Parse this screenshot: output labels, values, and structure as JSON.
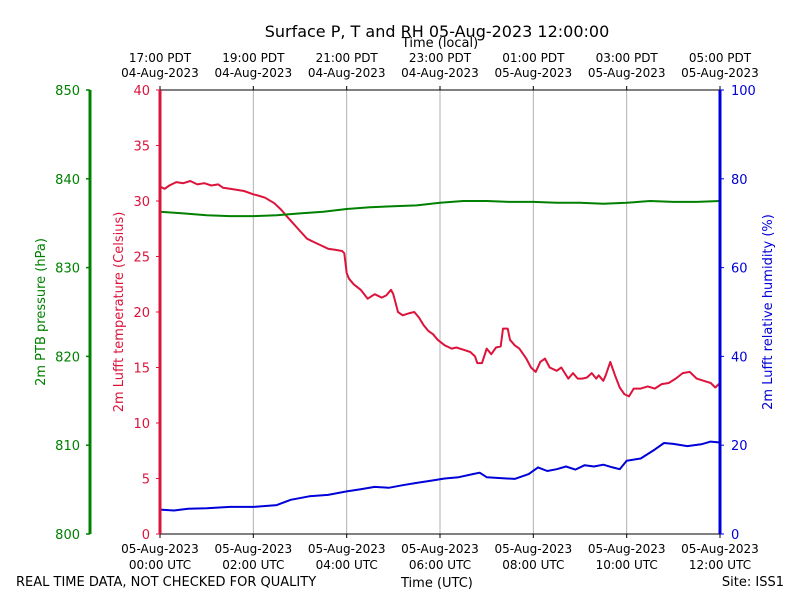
{
  "colors": {
    "temperature": "#dc143c",
    "humidity": "#0000d8",
    "pressure": "#008000",
    "grid": "#b0b0b0",
    "text": "#000000"
  },
  "footer": {
    "left": "REAL TIME DATA, NOT CHECKED FOR QUALITY",
    "center": "Time (UTC)",
    "right": "Site: ISS1"
  },
  "chart_data": {
    "type": "line",
    "title": "Surface P, T and RH 05-Aug-2023 12:00:00",
    "top_axis_label": "Time (local)",
    "xlabel": "Time (UTC)",
    "x_range_hours": [
      0,
      12
    ],
    "bottom_ticks": [
      {
        "h": 0,
        "date": "05-Aug-2023",
        "time": "00:00 UTC"
      },
      {
        "h": 2,
        "date": "05-Aug-2023",
        "time": "02:00 UTC"
      },
      {
        "h": 4,
        "date": "05-Aug-2023",
        "time": "04:00 UTC"
      },
      {
        "h": 6,
        "date": "05-Aug-2023",
        "time": "06:00 UTC"
      },
      {
        "h": 8,
        "date": "05-Aug-2023",
        "time": "08:00 UTC"
      },
      {
        "h": 10,
        "date": "05-Aug-2023",
        "time": "10:00 UTC"
      },
      {
        "h": 12,
        "date": "05-Aug-2023",
        "time": "12:00 UTC"
      }
    ],
    "top_ticks": [
      {
        "h": 0,
        "time": "17:00 PDT",
        "date": "04-Aug-2023"
      },
      {
        "h": 2,
        "time": "19:00 PDT",
        "date": "04-Aug-2023"
      },
      {
        "h": 4,
        "time": "21:00 PDT",
        "date": "04-Aug-2023"
      },
      {
        "h": 6,
        "time": "23:00 PDT",
        "date": "04-Aug-2023"
      },
      {
        "h": 8,
        "time": "01:00 PDT",
        "date": "05-Aug-2023"
      },
      {
        "h": 10,
        "time": "03:00 PDT",
        "date": "05-Aug-2023"
      },
      {
        "h": 12,
        "time": "05:00 PDT",
        "date": "05-Aug-2023"
      }
    ],
    "axes": {
      "pressure": {
        "label": "2m PTB pressure (hPa)",
        "range": [
          800,
          850
        ],
        "ticks": [
          800,
          810,
          820,
          830,
          840,
          850
        ]
      },
      "temperature": {
        "label": "2m Lufft temperature (Celsius)",
        "range": [
          0,
          40
        ],
        "ticks": [
          0,
          5,
          10,
          15,
          20,
          25,
          30,
          35,
          40
        ]
      },
      "humidity": {
        "label": "2m Lufft relative humidity (%)",
        "range": [
          0,
          100
        ],
        "ticks": [
          0,
          20,
          40,
          60,
          80,
          100
        ]
      }
    },
    "series": [
      {
        "name": "temperature",
        "axis": "temperature",
        "x": [
          0,
          0.1,
          0.2,
          0.35,
          0.5,
          0.65,
          0.8,
          0.95,
          1.1,
          1.25,
          1.35,
          1.5,
          1.65,
          1.8,
          2.0,
          2.1,
          2.25,
          2.45,
          2.6,
          2.7,
          2.85,
          3.0,
          3.15,
          3.3,
          3.45,
          3.6,
          3.75,
          3.9,
          3.95,
          4.0,
          4.05,
          4.15,
          4.3,
          4.45,
          4.6,
          4.75,
          4.85,
          4.95,
          5.0,
          5.1,
          5.2,
          5.35,
          5.45,
          5.55,
          5.65,
          5.75,
          5.85,
          5.95,
          6.1,
          6.25,
          6.35,
          6.5,
          6.65,
          6.75,
          6.8,
          6.9,
          7.0,
          7.1,
          7.2,
          7.3,
          7.35,
          7.45,
          7.5,
          7.6,
          7.7,
          7.85,
          7.95,
          8.05,
          8.15,
          8.25,
          8.35,
          8.5,
          8.6,
          8.75,
          8.85,
          8.95,
          9.05,
          9.15,
          9.25,
          9.35,
          9.4,
          9.5,
          9.55,
          9.65,
          9.75,
          9.85,
          9.95,
          10.05,
          10.15,
          10.3,
          10.45,
          10.6,
          10.75,
          10.9,
          11.05,
          11.2,
          11.35,
          11.5,
          11.65,
          11.8,
          11.9,
          12.0
        ],
        "values": [
          31.3,
          31.1,
          31.4,
          31.7,
          31.6,
          31.8,
          31.5,
          31.6,
          31.4,
          31.5,
          31.2,
          31.1,
          31.0,
          30.9,
          30.6,
          30.5,
          30.3,
          29.8,
          29.2,
          28.7,
          28.0,
          27.3,
          26.6,
          26.3,
          26.0,
          25.7,
          25.6,
          25.5,
          25.3,
          23.5,
          23.0,
          22.5,
          22.0,
          21.2,
          21.6,
          21.3,
          21.5,
          22.0,
          21.6,
          20.0,
          19.7,
          19.9,
          20.0,
          19.5,
          18.8,
          18.3,
          18.0,
          17.5,
          17.0,
          16.7,
          16.8,
          16.6,
          16.4,
          16.0,
          15.4,
          15.4,
          16.7,
          16.2,
          16.8,
          16.9,
          18.5,
          18.5,
          17.5,
          17.0,
          16.7,
          15.8,
          15.0,
          14.6,
          15.5,
          15.8,
          15.0,
          14.7,
          15.0,
          14.0,
          14.5,
          14.0,
          14.0,
          14.1,
          14.5,
          14.0,
          14.3,
          13.8,
          14.3,
          15.5,
          14.3,
          13.2,
          12.6,
          12.4,
          13.1,
          13.1,
          13.3,
          13.1,
          13.5,
          13.6,
          14.0,
          14.5,
          14.6,
          14.0,
          13.8,
          13.6,
          13.2,
          13.6
        ]
      },
      {
        "name": "pressure",
        "axis": "pressure",
        "x": [
          0,
          0.5,
          1.0,
          1.5,
          2.0,
          2.5,
          3.0,
          3.5,
          4.0,
          4.5,
          5.0,
          5.5,
          6.0,
          6.5,
          7.0,
          7.5,
          8.0,
          8.5,
          9.0,
          9.5,
          10.0,
          10.5,
          11.0,
          11.5,
          12.0
        ],
        "values": [
          836.3,
          836.1,
          835.9,
          835.8,
          835.8,
          835.9,
          836.1,
          836.3,
          836.6,
          836.8,
          836.9,
          837.0,
          837.3,
          837.5,
          837.5,
          837.4,
          837.4,
          837.3,
          837.3,
          837.2,
          837.3,
          837.5,
          837.4,
          837.4,
          837.5
        ]
      },
      {
        "name": "humidity",
        "axis": "humidity",
        "x": [
          0,
          0.3,
          0.6,
          1.0,
          1.5,
          2.0,
          2.5,
          2.8,
          3.2,
          3.6,
          4.0,
          4.3,
          4.6,
          4.9,
          5.2,
          5.5,
          5.8,
          6.1,
          6.4,
          6.7,
          6.85,
          7.0,
          7.3,
          7.6,
          7.9,
          8.1,
          8.3,
          8.5,
          8.7,
          8.9,
          9.1,
          9.3,
          9.5,
          9.7,
          9.85,
          10.0,
          10.3,
          10.6,
          10.8,
          11.0,
          11.3,
          11.6,
          11.8,
          12.0
        ],
        "values": [
          5.5,
          5.3,
          5.7,
          5.8,
          6.1,
          6.1,
          6.5,
          7.7,
          8.5,
          8.8,
          9.6,
          10.1,
          10.6,
          10.4,
          11.0,
          11.5,
          12.0,
          12.5,
          12.8,
          13.5,
          13.8,
          12.8,
          12.6,
          12.4,
          13.5,
          15.0,
          14.2,
          14.6,
          15.2,
          14.5,
          15.5,
          15.2,
          15.6,
          15.0,
          14.6,
          16.5,
          17.0,
          19.0,
          20.5,
          20.3,
          19.8,
          20.2,
          20.8,
          20.6
        ]
      }
    ]
  }
}
